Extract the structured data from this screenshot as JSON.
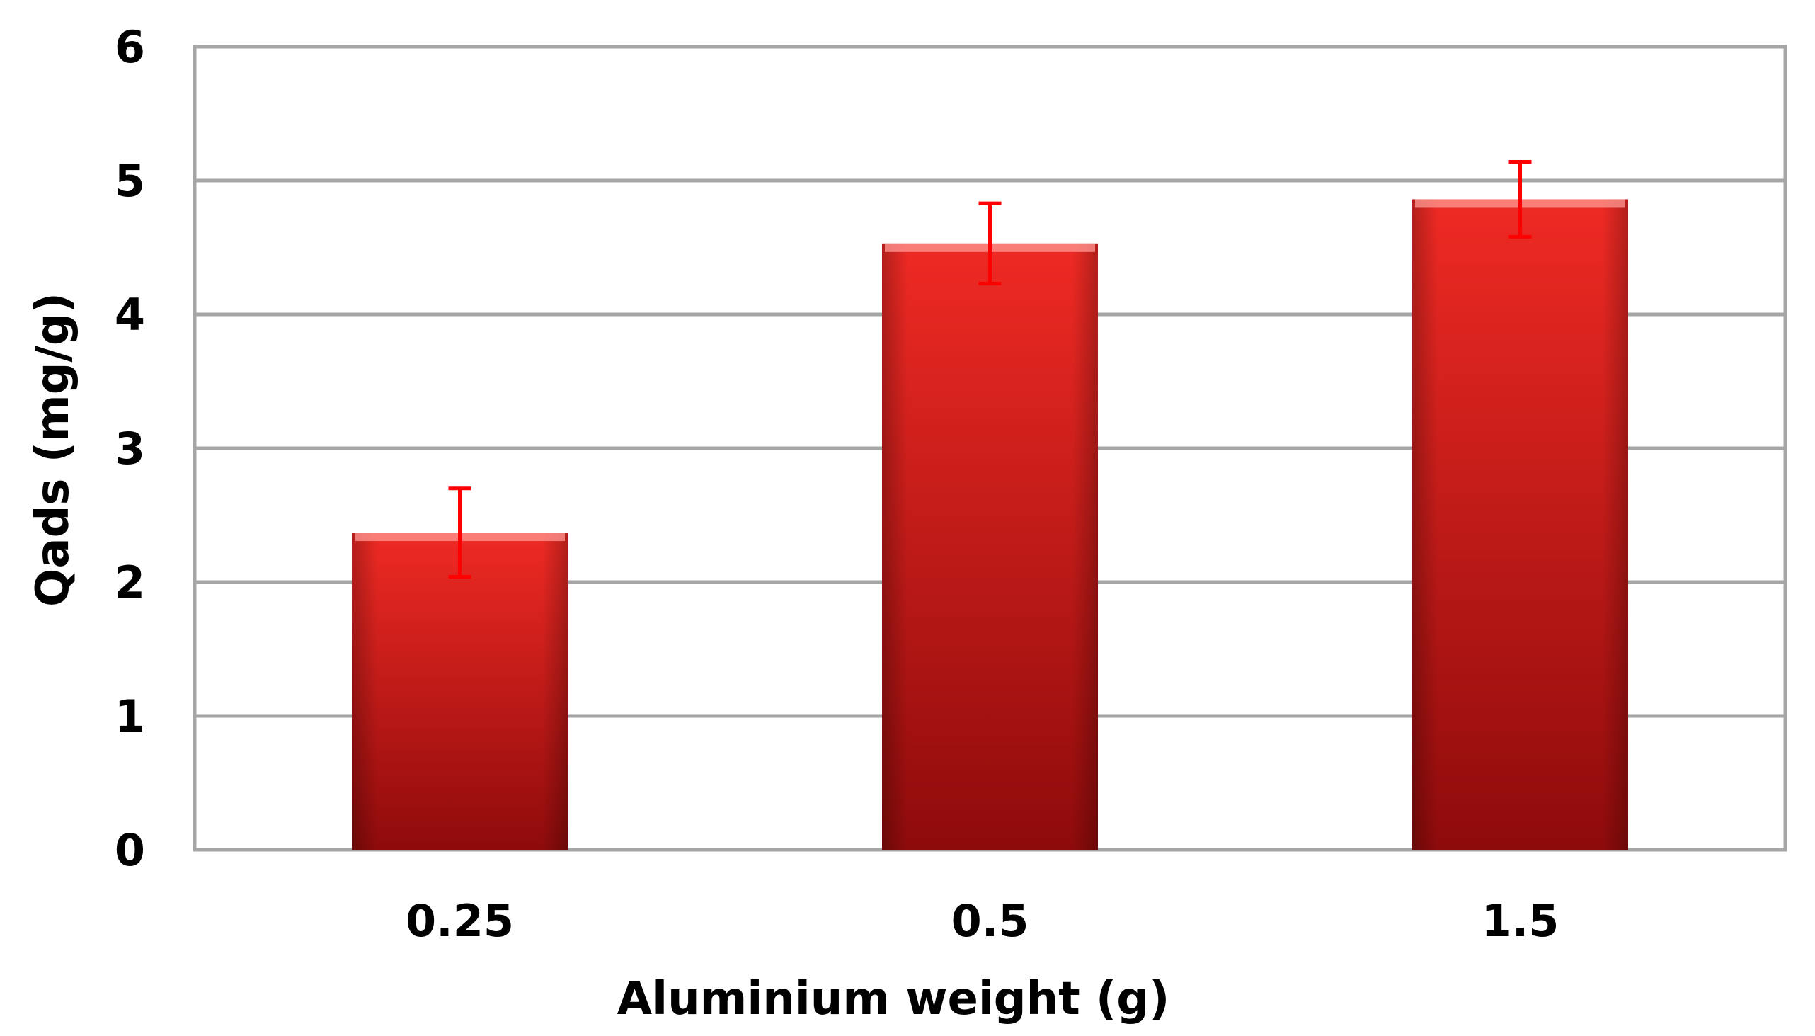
{
  "chart_data": {
    "type": "bar",
    "title": "",
    "xlabel": "Aluminium weight (g)",
    "ylabel": "Qads (mg/g)",
    "categories": [
      "0.25",
      "0.5",
      "1.5"
    ],
    "values": [
      2.37,
      4.53,
      4.86
    ],
    "error": [
      0.33,
      0.3,
      0.28
    ],
    "ylim": [
      0,
      6
    ],
    "yticks": [
      "0",
      "1",
      "2",
      "3",
      "4",
      "5",
      "6"
    ],
    "grid": true,
    "legend": "none",
    "colors": {
      "bar_light": "#ef2a24",
      "bar_dark": "#8e0b0b",
      "error_bar": "#ff0000",
      "grid": "#a6a6a6",
      "frame": "#a6a6a6"
    }
  }
}
